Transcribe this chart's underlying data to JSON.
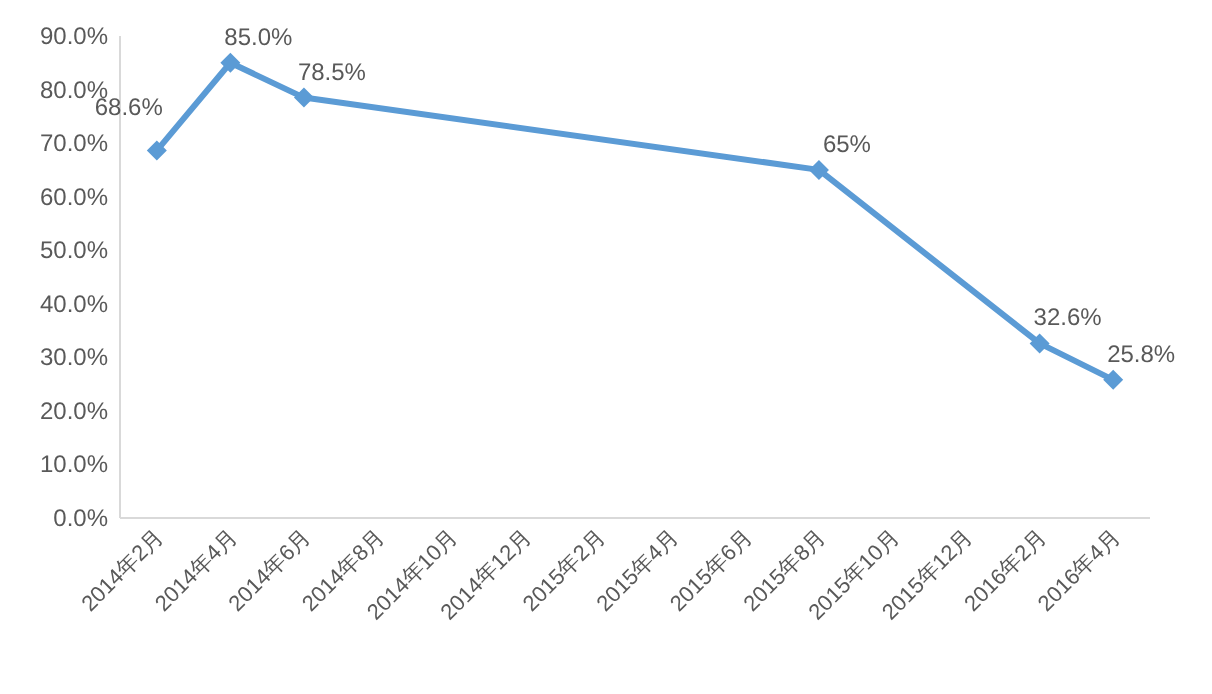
{
  "chart_data": {
    "type": "line",
    "x": [
      "2014-02",
      "2014-04",
      "2014-06",
      "2015-08",
      "2016-02",
      "2016-04"
    ],
    "series": [
      {
        "color": "#5b9bd5",
        "values": [
          68.6,
          85.0,
          78.5,
          65,
          32.6,
          25.8
        ],
        "value_labels": [
          "68.6%",
          "85.0%",
          "78.5%",
          "65%",
          "32.6%",
          "25.8%"
        ]
      }
    ],
    "xlim": [
      "2014-01",
      "2016-05"
    ],
    "xticks": [
      {
        "value": "2014-02",
        "label": "2014年2月"
      },
      {
        "value": "2014-04",
        "label": "2014年4月"
      },
      {
        "value": "2014-06",
        "label": "2014年6月"
      },
      {
        "value": "2014-08",
        "label": "2014年8月"
      },
      {
        "value": "2014-10",
        "label": "2014年10月"
      },
      {
        "value": "2014-12",
        "label": "2014年12月"
      },
      {
        "value": "2015-02",
        "label": "2015年2月"
      },
      {
        "value": "2015-04",
        "label": "2015年4月"
      },
      {
        "value": "2015-06",
        "label": "2015年6月"
      },
      {
        "value": "2015-08",
        "label": "2015年8月"
      },
      {
        "value": "2015-10",
        "label": "2015年10月"
      },
      {
        "value": "2015-12",
        "label": "2015年12月"
      },
      {
        "value": "2016-02",
        "label": "2016年2月"
      },
      {
        "value": "2016-04",
        "label": "2016年4月"
      }
    ],
    "ylim": [
      0,
      90
    ],
    "yticks": [
      {
        "value": 0,
        "label": "0.0%"
      },
      {
        "value": 10,
        "label": "10.0%"
      },
      {
        "value": 20,
        "label": "20.0%"
      },
      {
        "value": 30,
        "label": "30.0%"
      },
      {
        "value": 40,
        "label": "40.0%"
      },
      {
        "value": 50,
        "label": "50.0%"
      },
      {
        "value": 60,
        "label": "60.0%"
      },
      {
        "value": 70,
        "label": "70.0%"
      },
      {
        "value": 80,
        "label": "80.0%"
      },
      {
        "value": 90,
        "label": "90.0%"
      }
    ],
    "marker": "diamond",
    "line_style": "solid"
  }
}
